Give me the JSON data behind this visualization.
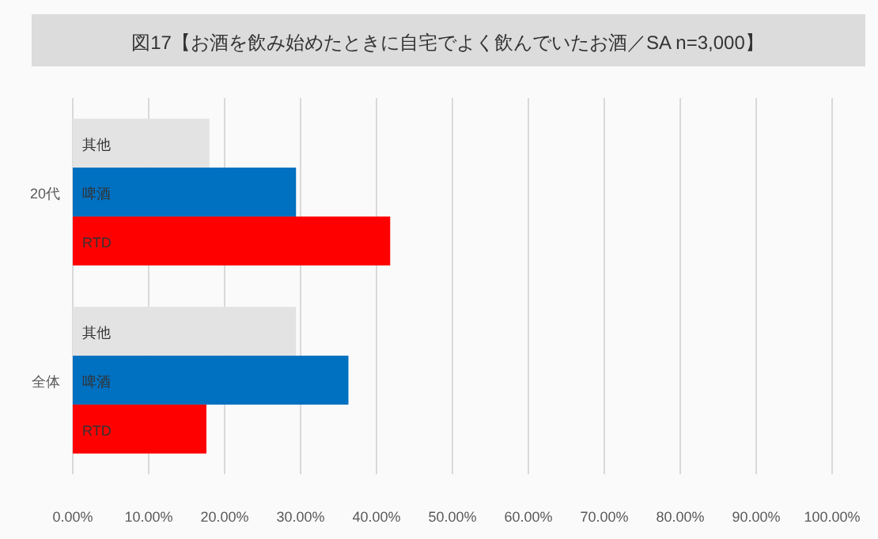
{
  "chart_data": {
    "type": "bar",
    "orientation": "horizontal",
    "title": "図17【お酒を飲み始めたときに自宅でよく飲んでいたお酒／SA n=3,000】",
    "categories": [
      "20代",
      "全体"
    ],
    "series": [
      {
        "name": "其他",
        "color": "#e3e3e3",
        "values": [
          18,
          29.4
        ]
      },
      {
        "name": "啤酒",
        "color": "#0070c0",
        "values": [
          29.4,
          36.3
        ]
      },
      {
        "name": "RTD",
        "color": "#ff0000",
        "values": [
          41.8,
          17.6
        ]
      }
    ],
    "xlim": [
      0,
      100
    ],
    "xticks": [
      {
        "value": 0,
        "label": "0.00%"
      },
      {
        "value": 10,
        "label": "10.00%"
      },
      {
        "value": 20,
        "label": "20.00%"
      },
      {
        "value": 30,
        "label": "30.00%"
      },
      {
        "value": 40,
        "label": "40.00%"
      },
      {
        "value": 50,
        "label": "50.00%"
      },
      {
        "value": 60,
        "label": "60.00%"
      },
      {
        "value": 70,
        "label": "70.00%"
      },
      {
        "value": 80,
        "label": "80.00%"
      },
      {
        "value": 90,
        "label": "90.00%"
      },
      {
        "value": 100,
        "label": "100.00%"
      }
    ],
    "grid": "x",
    "legend": false
  }
}
